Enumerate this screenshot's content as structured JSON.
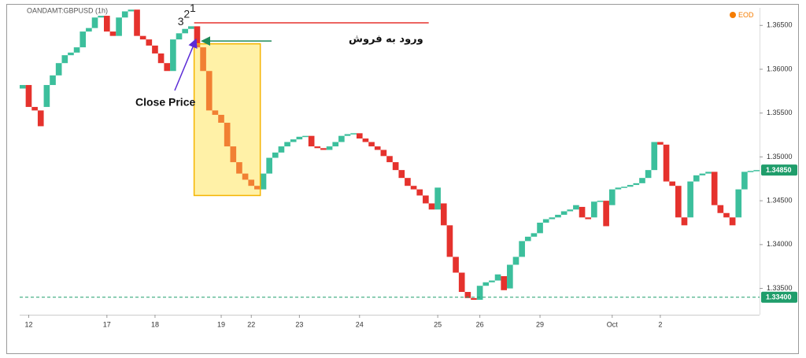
{
  "chart_data": {
    "type": "line-break",
    "title": "OANDAMT:GBPUSD (1h)",
    "badge": "EOD",
    "up_color": "#3cbf9c",
    "down_color": "#e5322d",
    "open": [
      1.3578,
      1.3582,
      1.3557,
      1.3553,
      1.3557,
      1.3582,
      1.3593,
      1.3607,
      1.3616,
      1.3619,
      1.3625,
      1.3643,
      1.3647,
      1.3659,
      1.3661,
      1.3643,
      1.3638,
      1.3659,
      1.3666,
      1.3668,
      1.3638,
      1.3634,
      1.3627,
      1.3618,
      1.3607,
      1.3598,
      1.3634,
      1.3641,
      1.3646,
      1.3649,
      1.3625,
      1.3598,
      1.3553,
      1.3548,
      1.3539,
      1.3512,
      1.3494,
      1.3481,
      1.3474,
      1.3467,
      1.3463,
      1.3481,
      1.3499,
      1.3505,
      1.3512,
      1.3517,
      1.352,
      1.3523,
      1.3524,
      1.3512,
      1.351,
      1.3508,
      1.3512,
      1.3517,
      1.3524,
      1.3526,
      1.3527,
      1.3521,
      1.3517,
      1.3512,
      1.3508,
      1.3501,
      1.3494,
      1.3485,
      1.3476,
      1.3467,
      1.3463,
      1.3456,
      1.3447,
      1.344,
      1.3447,
      1.3422,
      1.3386,
      1.3368,
      1.3346,
      1.3339,
      1.3337,
      1.3353,
      1.3357,
      1.3359,
      1.3364,
      1.335,
      1.3377,
      1.3386,
      1.3404,
      1.3409,
      1.3413,
      1.3425,
      1.3429,
      1.3431,
      1.3434,
      1.3438,
      1.344,
      1.3443,
      1.3431,
      1.3431,
      1.3449,
      1.345,
      1.3445,
      1.3463,
      1.3465,
      1.3466,
      1.3468,
      1.347,
      1.3476,
      1.3485,
      1.3517,
      1.3514,
      1.3472,
      1.3467,
      1.3431,
      1.3431,
      1.3472,
      1.3479,
      1.3481,
      1.3483,
      1.3445,
      1.3436,
      1.3431,
      1.3431,
      1.3463,
      1.3483,
      1.3484
    ],
    "close": [
      1.3582,
      1.3557,
      1.3553,
      1.3535,
      1.3582,
      1.3593,
      1.3607,
      1.3616,
      1.3619,
      1.3625,
      1.3643,
      1.3647,
      1.3659,
      1.3661,
      1.3643,
      1.3638,
      1.3659,
      1.3666,
      1.3668,
      1.3638,
      1.3634,
      1.3627,
      1.3618,
      1.3607,
      1.3598,
      1.3634,
      1.3641,
      1.3646,
      1.3649,
      1.3625,
      1.3598,
      1.3553,
      1.3548,
      1.3539,
      1.3512,
      1.3494,
      1.3481,
      1.3474,
      1.3467,
      1.3463,
      1.3481,
      1.3499,
      1.3505,
      1.3512,
      1.3517,
      1.352,
      1.3523,
      1.3524,
      1.3512,
      1.351,
      1.3508,
      1.3512,
      1.3517,
      1.3524,
      1.3526,
      1.3527,
      1.3521,
      1.3517,
      1.3512,
      1.3508,
      1.3501,
      1.3494,
      1.3485,
      1.3476,
      1.3467,
      1.3463,
      1.3456,
      1.3447,
      1.344,
      1.3465,
      1.3422,
      1.3386,
      1.3368,
      1.3346,
      1.3339,
      1.3337,
      1.3353,
      1.3357,
      1.3359,
      1.3366,
      1.3348,
      1.3377,
      1.3386,
      1.3404,
      1.3409,
      1.3413,
      1.3425,
      1.3429,
      1.3431,
      1.3434,
      1.3438,
      1.344,
      1.3445,
      1.3431,
      1.3429,
      1.3449,
      1.345,
      1.3421,
      1.3463,
      1.3465,
      1.3466,
      1.3468,
      1.347,
      1.3476,
      1.3485,
      1.3517,
      1.3514,
      1.3472,
      1.3467,
      1.3431,
      1.3422,
      1.3472,
      1.3479,
      1.3481,
      1.3483,
      1.3445,
      1.3436,
      1.3431,
      1.3422,
      1.3463,
      1.3483,
      1.3484,
      1.3485
    ],
    "ylim": [
      1.332,
      1.367
    ],
    "yticks": [
      {
        "value": 1.335,
        "label": "1.33500"
      },
      {
        "value": 1.34,
        "label": "1.34000"
      },
      {
        "value": 1.345,
        "label": "1.34500"
      },
      {
        "value": 1.35,
        "label": "1.35000"
      },
      {
        "value": 1.355,
        "label": "1.35500"
      },
      {
        "value": 1.36,
        "label": "1.36000"
      },
      {
        "value": 1.365,
        "label": "1.36500"
      }
    ],
    "xticks": [
      {
        "value": 1,
        "label": "12"
      },
      {
        "value": 14,
        "label": "17"
      },
      {
        "value": 22,
        "label": "18"
      },
      {
        "value": 33,
        "label": "19"
      },
      {
        "value": 38,
        "label": "22"
      },
      {
        "value": 46,
        "label": "23"
      },
      {
        "value": 56,
        "label": "24"
      },
      {
        "value": 69,
        "label": "25"
      },
      {
        "value": 76,
        "label": "26"
      },
      {
        "value": 86,
        "label": "29"
      },
      {
        "value": 98,
        "label": "Oct"
      },
      {
        "value": 106,
        "label": "2"
      }
    ],
    "last_price": {
      "value": 1.3485,
      "label": "1.34850"
    },
    "reference_line": {
      "value": 1.334,
      "label": "1.33400",
      "color": "#1f9d6b"
    },
    "resistance_line": {
      "value": 1.3653,
      "from": 29,
      "to": 68,
      "color": "#e5322d"
    },
    "highlight": {
      "from": 29,
      "to": 39,
      "top": 1.3629,
      "bottom": 1.3456
    },
    "wave_labels": [
      "3",
      "2",
      "1"
    ],
    "annotations": {
      "entry": "ورود به فروش",
      "close_price": "Close Price"
    }
  }
}
